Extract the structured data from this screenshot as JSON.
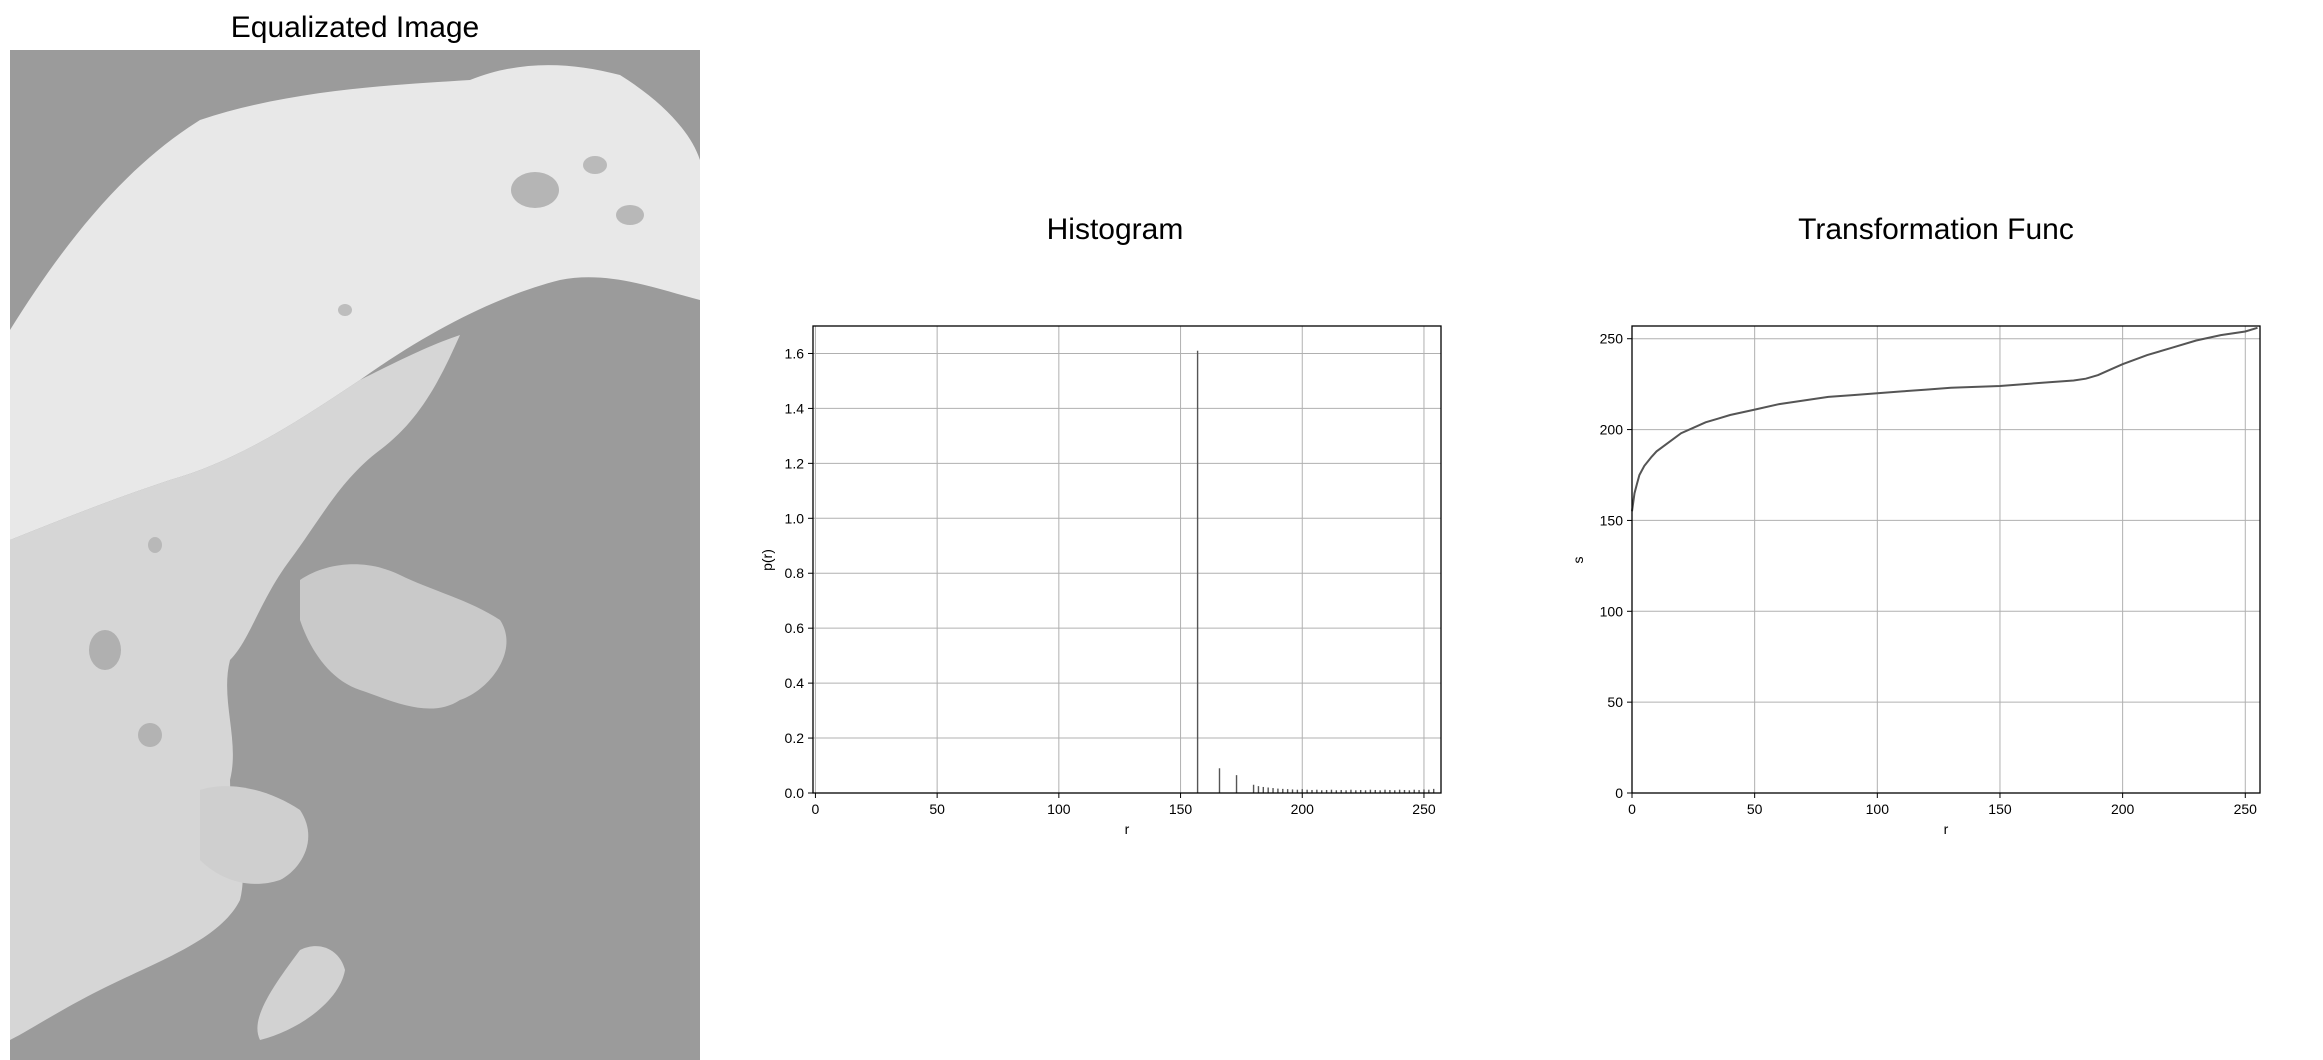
{
  "figure": {
    "background": "#ffffff"
  },
  "image_panel": {
    "title": "Equalizated Image",
    "background_color": "#9b9b9b",
    "foreground_color": "#ececec"
  },
  "chart_data": [
    {
      "type": "bar",
      "title": "Histogram",
      "xlabel": "r",
      "ylabel": "p(r)",
      "xlim": [
        -1,
        257
      ],
      "ylim": [
        0,
        1.7
      ],
      "xticks": [
        0,
        50,
        100,
        150,
        200,
        250
      ],
      "yticks": [
        0.0,
        0.2,
        0.4,
        0.6,
        0.8,
        1.0,
        1.2,
        1.4,
        1.6
      ],
      "ytick_labels": [
        "0.0",
        "0.2",
        "0.4",
        "0.6",
        "0.8",
        "1.0",
        "1.2",
        "1.4",
        "1.6"
      ],
      "grid": true,
      "color": "#555555",
      "x": [
        157,
        166,
        173,
        180,
        182,
        184,
        186,
        188,
        190,
        192,
        194,
        196,
        198,
        200,
        202,
        204,
        206,
        208,
        210,
        212,
        214,
        216,
        218,
        220,
        222,
        224,
        226,
        228,
        230,
        232,
        234,
        236,
        238,
        240,
        242,
        244,
        246,
        248,
        250,
        252,
        254
      ],
      "values": [
        1.61,
        0.09,
        0.065,
        0.03,
        0.025,
        0.022,
        0.02,
        0.018,
        0.016,
        0.015,
        0.014,
        0.013,
        0.012,
        0.014,
        0.012,
        0.011,
        0.012,
        0.01,
        0.011,
        0.012,
        0.01,
        0.011,
        0.01,
        0.012,
        0.01,
        0.011,
        0.01,
        0.012,
        0.011,
        0.01,
        0.012,
        0.011,
        0.01,
        0.012,
        0.011,
        0.01,
        0.012,
        0.011,
        0.013,
        0.012,
        0.015
      ]
    },
    {
      "type": "line",
      "title": "Transformation Func",
      "xlabel": "r",
      "ylabel": "s",
      "xlim": [
        0,
        256
      ],
      "ylim": [
        0,
        257
      ],
      "xticks": [
        0,
        50,
        100,
        150,
        200,
        250
      ],
      "yticks": [
        0,
        50,
        100,
        150,
        200,
        250
      ],
      "grid": true,
      "color": "#555555",
      "x": [
        0,
        1,
        2,
        3,
        5,
        8,
        10,
        15,
        20,
        25,
        30,
        35,
        40,
        50,
        60,
        70,
        80,
        90,
        100,
        110,
        120,
        130,
        140,
        150,
        160,
        170,
        175,
        180,
        185,
        190,
        195,
        200,
        210,
        220,
        230,
        240,
        250,
        255
      ],
      "y": [
        155,
        165,
        170,
        175,
        180,
        185,
        188,
        193,
        198,
        201,
        204,
        206,
        208,
        211,
        214,
        216,
        218,
        219,
        220,
        221,
        222,
        223,
        223.5,
        224,
        225,
        226,
        226.5,
        227,
        228,
        230,
        233,
        236,
        241,
        245,
        249,
        252,
        254,
        256
      ]
    }
  ]
}
